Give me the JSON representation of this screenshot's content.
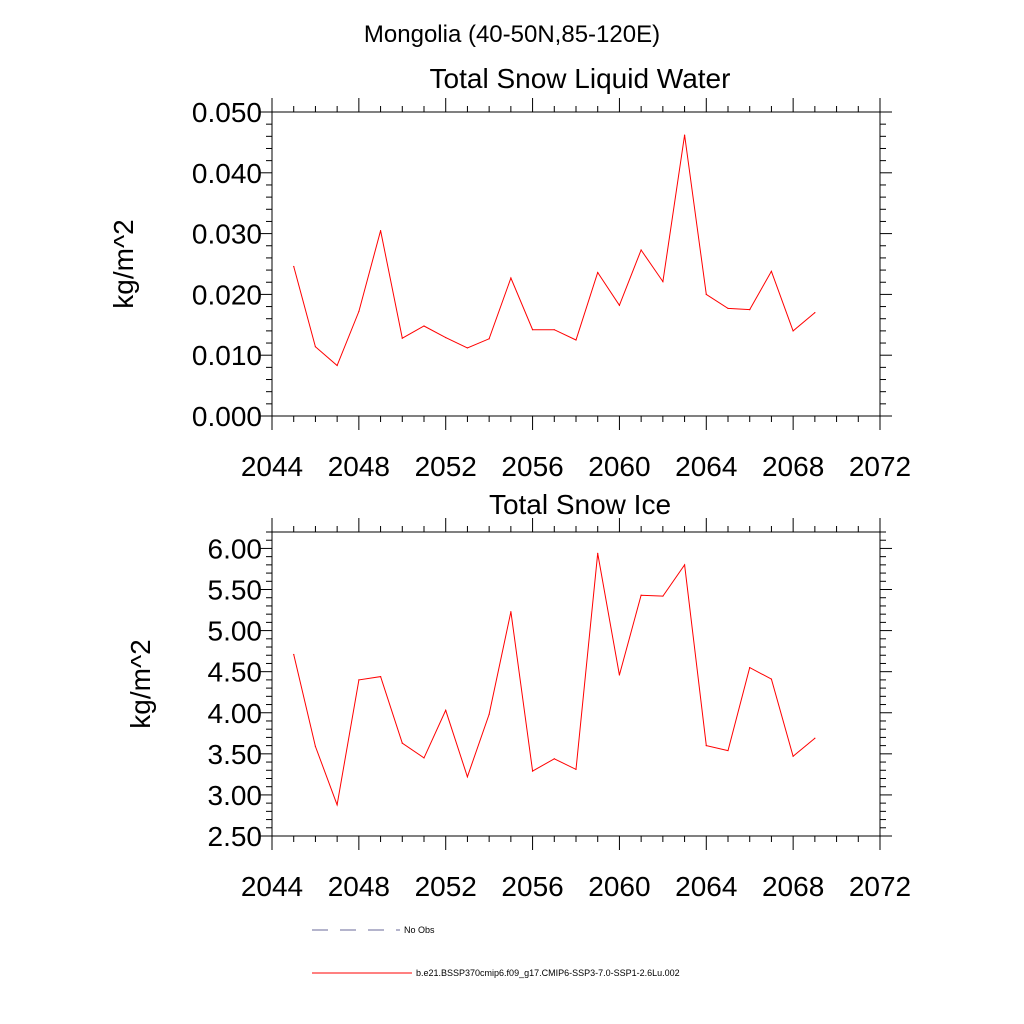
{
  "page": {
    "supertitle": "Mongolia (40-50N,85-120E)"
  },
  "legend": {
    "obs_label": "No Obs",
    "obs_color": "#6a6a9a",
    "model_label": "b.e21.BSSP370cmip6.f09_g17.CMIP6-SSP3-7.0-SSP1-2.6Lu.002",
    "model_color": "#ff0000"
  },
  "chart_data": [
    {
      "type": "line",
      "title": "Total Snow Liquid Water",
      "xlabel": "",
      "ylabel": "kg/m^2",
      "xlim": [
        2044,
        2072
      ],
      "ylim": [
        0.0,
        0.05
      ],
      "x_ticks": [
        2044,
        2048,
        2052,
        2056,
        2060,
        2064,
        2068,
        2072
      ],
      "y_ticks": [
        0.0,
        0.01,
        0.02,
        0.03,
        0.04,
        0.05
      ],
      "y_tick_labels": [
        "0.000",
        "0.010",
        "0.020",
        "0.030",
        "0.040",
        "0.050"
      ],
      "grid": false,
      "series": [
        {
          "color": "#ff0000",
          "x": [
            2045,
            2046,
            2047,
            2048,
            2049,
            2050,
            2051,
            2052,
            2053,
            2054,
            2055,
            2056,
            2057,
            2058,
            2059,
            2060,
            2061,
            2062,
            2063,
            2064,
            2065,
            2066,
            2067,
            2068,
            2069
          ],
          "values": [
            0.0246,
            0.0114,
            0.0083,
            0.0172,
            0.0305,
            0.0128,
            0.0148,
            0.0129,
            0.0112,
            0.0127,
            0.0227,
            0.0142,
            0.0142,
            0.0125,
            0.0236,
            0.0182,
            0.0273,
            0.0221,
            0.0462,
            0.02,
            0.0177,
            0.0175,
            0.0238,
            0.014,
            0.017
          ]
        }
      ]
    },
    {
      "type": "line",
      "title": "Total Snow Ice",
      "xlabel": "",
      "ylabel": "kg/m^2",
      "xlim": [
        2044,
        2072
      ],
      "ylim": [
        2.5,
        6.2
      ],
      "x_ticks": [
        2044,
        2048,
        2052,
        2056,
        2060,
        2064,
        2068,
        2072
      ],
      "y_ticks": [
        2.5,
        3.0,
        3.5,
        4.0,
        4.5,
        5.0,
        5.5,
        6.0
      ],
      "y_tick_labels": [
        "2.50",
        "3.00",
        "3.50",
        "4.00",
        "4.50",
        "5.00",
        "5.50",
        "6.00"
      ],
      "grid": false,
      "series": [
        {
          "color": "#ff0000",
          "x": [
            2045,
            2046,
            2047,
            2048,
            2049,
            2050,
            2051,
            2052,
            2053,
            2054,
            2055,
            2056,
            2057,
            2058,
            2059,
            2060,
            2061,
            2062,
            2063,
            2064,
            2065,
            2066,
            2067,
            2068,
            2069
          ],
          "values": [
            4.71,
            3.59,
            2.88,
            4.4,
            4.44,
            3.63,
            3.45,
            4.03,
            3.22,
            3.98,
            5.23,
            3.29,
            3.44,
            3.31,
            5.94,
            4.46,
            5.43,
            5.42,
            5.8,
            3.6,
            3.54,
            4.55,
            4.41,
            3.47,
            3.69
          ]
        }
      ]
    }
  ]
}
